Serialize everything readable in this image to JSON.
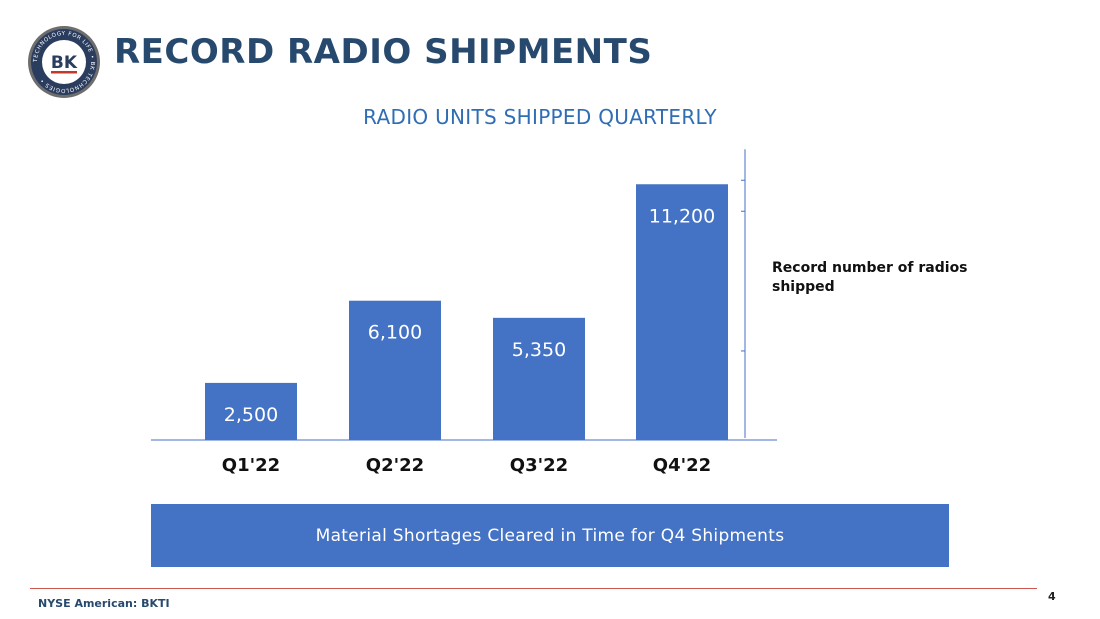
{
  "logo": {
    "initials": "BK",
    "ring_text": "TECHNOLOGY FOR LIFE • BK TECHNOLOGIES •"
  },
  "header": {
    "title": "RECORD RADIO SHIPMENTS"
  },
  "chart_data": {
    "type": "bar",
    "title": "RADIO UNITS SHIPPED QUARTERLY",
    "categories": [
      "Q1'22",
      "Q2'22",
      "Q3'22",
      "Q4'22"
    ],
    "values": [
      2500,
      6100,
      5350,
      11200
    ],
    "value_labels": [
      "2,500",
      "6,100",
      "5,350",
      "11,200"
    ],
    "ylim": [
      0,
      12700
    ],
    "grid": false,
    "colors": {
      "bar": "#4472c4",
      "label": "#ffffff",
      "axis": "#4472c4"
    },
    "annotation": {
      "text": "Record number of radios shipped",
      "target": "Q4'22"
    }
  },
  "banner": {
    "text": "Material Shortages Cleared in Time for Q4 Shipments"
  },
  "footer": {
    "exchange": "NYSE American: BKTI",
    "page": "4"
  }
}
